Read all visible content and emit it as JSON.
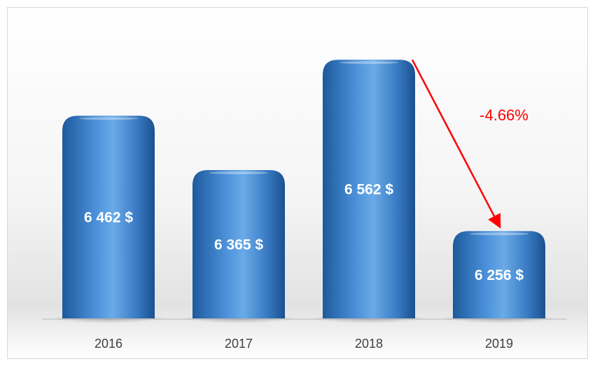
{
  "chart_data": {
    "type": "bar",
    "categories": [
      "2016",
      "2017",
      "2018",
      "2019"
    ],
    "values": [
      6462,
      6365,
      6562,
      6256
    ],
    "value_labels": [
      "6 462 $",
      "6 365 $",
      "6 562 $",
      "6 256 $"
    ],
    "color": "#3b7cc4",
    "ylim": [
      6100,
      6600
    ],
    "annotation": "-4.66%"
  }
}
